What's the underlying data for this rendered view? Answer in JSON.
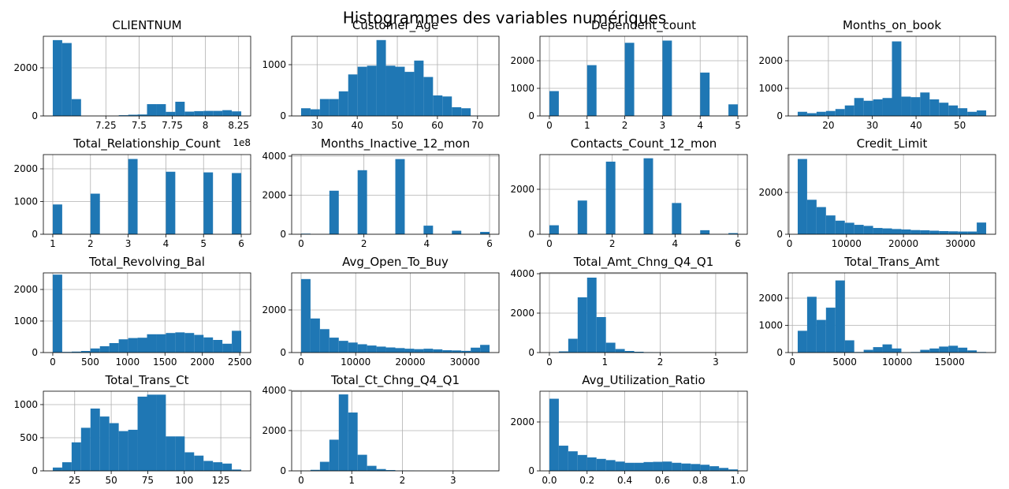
{
  "title": "Histogrammes des variables numériques",
  "chart_data": [
    {
      "type": "histogram",
      "title": "CLIENTNUM",
      "x_offset_label": "1e8",
      "color": "#1f77b4",
      "grid": true,
      "bins": [
        6.85,
        6.921,
        6.992,
        7.063,
        7.134,
        7.205,
        7.276,
        7.347,
        7.418,
        7.489,
        7.56,
        7.631,
        7.702,
        7.773,
        7.844,
        7.915,
        7.986,
        8.057,
        8.128,
        8.199,
        8.27
      ],
      "counts": [
        3150,
        3030,
        700,
        0,
        0,
        0,
        0,
        30,
        50,
        60,
        490,
        490,
        170,
        590,
        180,
        200,
        210,
        210,
        240,
        190
      ],
      "xlim": [
        6.779,
        8.341
      ],
      "xticks": [
        7.25,
        7.5,
        7.75,
        8.0,
        8.25
      ],
      "ylim": [
        0,
        3310
      ],
      "yticks": [
        0,
        2000
      ]
    },
    {
      "type": "histogram",
      "title": "Customer_Age",
      "color": "#1f77b4",
      "grid": true,
      "bins": [
        26,
        28.35,
        30.7,
        33.05,
        35.4,
        37.75,
        40.1,
        42.45,
        44.8,
        47.15,
        49.5,
        51.85,
        54.2,
        56.55,
        58.9,
        61.25,
        63.6,
        65.95,
        68.3,
        70.65,
        73
      ],
      "counts": [
        150,
        130,
        330,
        330,
        480,
        810,
        960,
        980,
        1480,
        980,
        960,
        860,
        1080,
        760,
        400,
        380,
        170,
        150,
        5,
        2
      ],
      "xlim": [
        23.65,
        75.35
      ],
      "xticks": [
        30,
        40,
        50,
        60,
        70
      ],
      "ylim": [
        0,
        1554
      ],
      "yticks": [
        0,
        1000
      ]
    },
    {
      "type": "histogram",
      "title": "Dependent_count",
      "color": "#1f77b4",
      "grid": true,
      "bins": [
        0,
        0.25,
        0.5,
        0.75,
        1,
        1.25,
        1.5,
        1.75,
        2,
        2.25,
        2.5,
        2.75,
        3,
        3.25,
        3.5,
        3.75,
        4,
        4.25,
        4.5,
        4.75,
        5
      ],
      "counts": [
        900,
        0,
        0,
        0,
        1840,
        0,
        0,
        0,
        2650,
        0,
        0,
        0,
        2730,
        0,
        0,
        0,
        1570,
        0,
        0,
        420
      ],
      "xlim": [
        -0.25,
        5.25
      ],
      "xticks": [
        0,
        1,
        2,
        3,
        4,
        5
      ],
      "ylim": [
        0,
        2886
      ],
      "yticks": [
        0,
        1000,
        2000
      ]
    },
    {
      "type": "histogram",
      "title": "Months_on_book",
      "color": "#1f77b4",
      "grid": true,
      "bins": [
        13,
        15.15,
        17.3,
        19.45,
        21.6,
        23.75,
        25.9,
        28.05,
        30.2,
        32.35,
        34.5,
        36.65,
        38.8,
        40.95,
        43.1,
        45.25,
        47.4,
        49.55,
        51.7,
        53.85,
        56
      ],
      "counts": [
        150,
        100,
        150,
        180,
        250,
        380,
        650,
        550,
        600,
        650,
        2700,
        700,
        680,
        850,
        600,
        480,
        380,
        280,
        150,
        200
      ],
      "xlim": [
        10.85,
        58.15
      ],
      "xticks": [
        20,
        30,
        40,
        50
      ],
      "ylim": [
        0,
        2886
      ],
      "yticks": [
        0,
        1000,
        2000
      ]
    },
    {
      "type": "histogram",
      "title": "Total_Relationship_Count",
      "color": "#1f77b4",
      "grid": true,
      "bins": [
        1,
        1.25,
        1.5,
        1.75,
        2,
        2.25,
        2.5,
        2.75,
        3,
        3.25,
        3.5,
        3.75,
        4,
        4.25,
        4.5,
        4.75,
        5,
        5.25,
        5.5,
        5.75,
        6
      ],
      "counts": [
        910,
        0,
        0,
        0,
        1240,
        0,
        0,
        0,
        2300,
        0,
        0,
        0,
        1910,
        0,
        0,
        0,
        1890,
        0,
        0,
        1870
      ],
      "xlim": [
        0.75,
        6.25
      ],
      "xticks": [
        1,
        2,
        3,
        4,
        5,
        6
      ],
      "ylim": [
        0,
        2434
      ],
      "yticks": [
        0,
        1000,
        2000
      ]
    },
    {
      "type": "histogram",
      "title": "Months_Inactive_12_mon",
      "color": "#1f77b4",
      "grid": true,
      "bins": [
        0,
        0.3,
        0.6,
        0.9,
        1.2,
        1.5,
        1.8,
        2.1,
        2.4,
        2.7,
        3.0,
        3.3,
        3.6,
        3.9,
        4.2,
        4.5,
        4.8,
        5.1,
        5.4,
        5.7,
        6
      ],
      "counts": [
        30,
        0,
        0,
        2230,
        0,
        0,
        3280,
        0,
        0,
        0,
        3850,
        0,
        0,
        440,
        0,
        0,
        180,
        0,
        0,
        120
      ],
      "xlim": [
        -0.3,
        6.3
      ],
      "xticks": [
        0,
        2,
        4,
        6
      ],
      "ylim": [
        0,
        4080
      ],
      "yticks": [
        0,
        2000,
        4000
      ]
    },
    {
      "type": "histogram",
      "title": "Contacts_Count_12_mon",
      "color": "#1f77b4",
      "grid": true,
      "bins": [
        0,
        0.3,
        0.6,
        0.9,
        1.2,
        1.5,
        1.8,
        2.1,
        2.4,
        2.7,
        3.0,
        3.3,
        3.6,
        3.9,
        4.2,
        4.5,
        4.8,
        5.1,
        5.4,
        5.7,
        6
      ],
      "counts": [
        400,
        0,
        0,
        1500,
        0,
        0,
        3230,
        0,
        0,
        0,
        3380,
        0,
        0,
        1390,
        0,
        0,
        180,
        0,
        0,
        50
      ],
      "xlim": [
        -0.3,
        6.3
      ],
      "xticks": [
        0,
        2,
        4,
        6
      ],
      "ylim": [
        0,
        3544
      ],
      "yticks": [
        0,
        2000
      ]
    },
    {
      "type": "histogram",
      "title": "Credit_Limit",
      "color": "#1f77b4",
      "grid": true,
      "bins": [
        1438,
        3092,
        4746,
        6400,
        8054,
        9708,
        11362,
        13016,
        14670,
        16324,
        17978,
        19632,
        21286,
        22940,
        24594,
        26248,
        27902,
        29556,
        31210,
        32864,
        34518
      ],
      "counts": [
        3600,
        1650,
        1300,
        900,
        650,
        550,
        450,
        400,
        300,
        280,
        250,
        230,
        200,
        190,
        170,
        150,
        140,
        130,
        130,
        560
      ],
      "xlim": [
        -216,
        36172
      ],
      "xticks": [
        0,
        10000,
        20000,
        30000
      ],
      "ylim": [
        0,
        3811
      ],
      "yticks": [
        0,
        2000
      ]
    },
    {
      "type": "histogram",
      "title": "Total_Revolving_Bal",
      "color": "#1f77b4",
      "grid": true,
      "bins": [
        0,
        126,
        252,
        378,
        504,
        630,
        756,
        882,
        1008,
        1134,
        1260,
        1386,
        1512,
        1638,
        1764,
        1890,
        2016,
        2142,
        2268,
        2394,
        2520
      ],
      "counts": [
        2470,
        20,
        30,
        50,
        130,
        200,
        300,
        420,
        460,
        470,
        580,
        580,
        620,
        640,
        620,
        560,
        480,
        400,
        280,
        690
      ],
      "xlim": [
        -126,
        2646
      ],
      "xticks": [
        0,
        500,
        1000,
        1500,
        2000,
        2500
      ],
      "ylim": [
        0,
        2525
      ],
      "yticks": [
        0,
        1000,
        2000
      ]
    },
    {
      "type": "histogram",
      "title": "Avg_Open_To_Buy",
      "color": "#1f77b4",
      "grid": true,
      "bins": [
        0,
        1726,
        3452,
        5178,
        6904,
        8630,
        10356,
        12082,
        13808,
        15534,
        17260,
        18986,
        20712,
        22438,
        24164,
        25890,
        27616,
        29342,
        31068,
        32794,
        34520
      ],
      "counts": [
        3450,
        1600,
        1100,
        700,
        550,
        470,
        390,
        330,
        280,
        240,
        210,
        180,
        160,
        180,
        150,
        110,
        100,
        80,
        230,
        360
      ],
      "xlim": [
        -1726,
        36246
      ],
      "xticks": [
        0,
        10000,
        20000,
        30000
      ],
      "ylim": [
        0,
        3740
      ],
      "yticks": [
        0,
        2000
      ]
    },
    {
      "type": "histogram",
      "title": "Total_Amt_Chng_Q4_Q1",
      "color": "#1f77b4",
      "grid": true,
      "bins": [
        0,
        0.17,
        0.34,
        0.51,
        0.68,
        0.85,
        1.02,
        1.19,
        1.36,
        1.53,
        1.7,
        1.87,
        2.04,
        2.21,
        2.38,
        2.55,
        2.72,
        2.89,
        3.06,
        3.23,
        3.4
      ],
      "counts": [
        10,
        60,
        700,
        2800,
        3800,
        1800,
        500,
        180,
        80,
        40,
        20,
        10,
        5,
        3,
        2,
        2,
        1,
        1,
        0,
        1
      ],
      "xlim": [
        -0.17,
        3.57
      ],
      "xticks": [
        0,
        1,
        2,
        3
      ],
      "ylim": [
        0,
        4040
      ],
      "yticks": [
        0,
        2000,
        4000
      ]
    },
    {
      "type": "histogram",
      "title": "Total_Trans_Amt",
      "color": "#1f77b4",
      "grid": true,
      "bins": [
        510,
        1409,
        2308,
        3207,
        4106,
        5005,
        5904,
        6803,
        7702,
        8601,
        9500,
        10399,
        11298,
        12197,
        13096,
        13995,
        14894,
        15793,
        16692,
        17591,
        18490
      ],
      "counts": [
        800,
        2050,
        1200,
        1650,
        2650,
        450,
        20,
        100,
        200,
        300,
        150,
        10,
        20,
        100,
        150,
        220,
        250,
        180,
        80,
        20
      ],
      "xlim": [
        -389,
        19389
      ],
      "xticks": [
        0,
        5000,
        10000,
        15000
      ],
      "ylim": [
        0,
        2928
      ],
      "yticks": [
        0,
        1000,
        2000
      ]
    },
    {
      "type": "histogram",
      "title": "Total_Trans_Ct",
      "color": "#1f77b4",
      "grid": true,
      "bins": [
        10,
        16.45,
        22.9,
        29.35,
        35.8,
        42.25,
        48.7,
        55.15,
        61.6,
        68.05,
        74.5,
        80.95,
        87.4,
        93.85,
        100.3,
        106.75,
        113.2,
        119.65,
        126.1,
        132.55,
        139
      ],
      "counts": [
        50,
        130,
        430,
        650,
        940,
        820,
        720,
        600,
        620,
        1120,
        1150,
        1150,
        520,
        520,
        280,
        230,
        150,
        130,
        110,
        20
      ],
      "xlim": [
        3.55,
        145.45
      ],
      "xticks": [
        25,
        50,
        75,
        100,
        125
      ],
      "ylim": [
        0,
        1202
      ],
      "yticks": [
        0,
        500,
        1000
      ]
    },
    {
      "type": "histogram",
      "title": "Total_Ct_Chng_Q4_Q1",
      "color": "#1f77b4",
      "grid": true,
      "bins": [
        0,
        0.186,
        0.372,
        0.558,
        0.744,
        0.93,
        1.116,
        1.302,
        1.488,
        1.674,
        1.86,
        2.046,
        2.232,
        2.418,
        2.604,
        2.79,
        2.976,
        3.162,
        3.348,
        3.534,
        3.72
      ],
      "counts": [
        10,
        50,
        450,
        1550,
        3800,
        2900,
        800,
        250,
        90,
        40,
        15,
        10,
        5,
        3,
        2,
        1,
        1,
        1,
        0,
        1
      ],
      "xlim": [
        -0.186,
        3.906
      ],
      "xticks": [
        0,
        1,
        2,
        3
      ],
      "ylim": [
        0,
        3960
      ],
      "yticks": [
        0,
        2000,
        4000
      ]
    },
    {
      "type": "histogram",
      "title": "Avg_Utilization_Ratio",
      "color": "#1f77b4",
      "grid": true,
      "bins": [
        0,
        0.05,
        0.1,
        0.15,
        0.2,
        0.25,
        0.3,
        0.35,
        0.4,
        0.45,
        0.5,
        0.55,
        0.6,
        0.65,
        0.7,
        0.75,
        0.8,
        0.85,
        0.9,
        0.95,
        1
      ],
      "counts": [
        2950,
        1030,
        800,
        650,
        550,
        490,
        440,
        380,
        330,
        330,
        360,
        370,
        380,
        330,
        300,
        280,
        250,
        190,
        120,
        60
      ],
      "xlim": [
        -0.05,
        1.05
      ],
      "xticks": [
        {
          "value": 0,
          "label": "0.0"
        },
        0.2,
        0.4,
        0.6,
        0.8,
        {
          "value": 1,
          "label": "1.0"
        }
      ],
      "ylim": [
        0,
        3258
      ],
      "yticks": [
        0,
        2000
      ]
    }
  ]
}
